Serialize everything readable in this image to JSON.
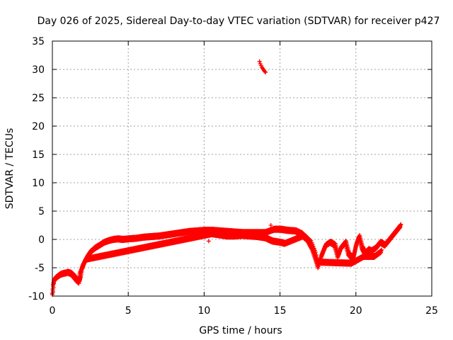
{
  "chart_data": {
    "type": "scatter",
    "title": "Day 026 of 2025, Sidereal Day-to-day VTEC variation (SDTVAR) for receiver p427",
    "xlabel": "GPS time / hours",
    "ylabel": "SDTVAR / TECUs",
    "xlim": [
      0,
      25
    ],
    "ylim": [
      -10,
      35
    ],
    "xticks": [
      0,
      5,
      10,
      15,
      20,
      25
    ],
    "yticks": [
      -10,
      -5,
      0,
      5,
      10,
      15,
      20,
      25,
      30,
      35
    ],
    "grid": true,
    "marker": "+",
    "color": "#ff0000",
    "series": [
      {
        "name": "SDTVAR",
        "trace": [
          [
            0.0,
            -9.5
          ],
          [
            0.05,
            -8.0
          ],
          [
            0.1,
            -7.2
          ],
          [
            0.2,
            -6.8
          ],
          [
            0.35,
            -6.5
          ],
          [
            0.5,
            -6.2
          ],
          [
            0.7,
            -6.0
          ],
          [
            0.9,
            -5.9
          ],
          [
            1.0,
            -5.8
          ],
          [
            1.2,
            -6.0
          ],
          [
            1.4,
            -6.5
          ],
          [
            1.6,
            -7.2
          ],
          [
            1.75,
            -7.5
          ],
          [
            1.85,
            -6.5
          ],
          [
            1.95,
            -5.0
          ],
          [
            2.1,
            -4.0
          ],
          [
            2.3,
            -3.0
          ],
          [
            2.5,
            -2.2
          ],
          [
            2.8,
            -1.5
          ],
          [
            3.1,
            -1.0
          ],
          [
            3.4,
            -0.5
          ],
          [
            3.7,
            -0.2
          ],
          [
            4.0,
            0.0
          ],
          [
            4.3,
            0.1
          ],
          [
            4.6,
            0.0
          ],
          [
            5.0,
            0.1
          ],
          [
            5.5,
            0.2
          ],
          [
            6.0,
            0.4
          ],
          [
            6.5,
            0.5
          ],
          [
            7.0,
            0.6
          ],
          [
            7.5,
            0.8
          ],
          [
            8.0,
            1.0
          ],
          [
            8.5,
            1.2
          ],
          [
            9.0,
            1.4
          ],
          [
            9.5,
            1.5
          ],
          [
            10.0,
            1.6
          ],
          [
            10.5,
            1.6
          ],
          [
            11.0,
            1.5
          ],
          [
            11.5,
            1.4
          ],
          [
            12.0,
            1.3
          ],
          [
            12.5,
            1.2
          ],
          [
            13.0,
            1.2
          ],
          [
            13.5,
            1.2
          ],
          [
            14.0,
            1.2
          ],
          [
            14.3,
            1.5
          ],
          [
            14.6,
            1.8
          ],
          [
            15.0,
            1.8
          ],
          [
            15.5,
            1.6
          ],
          [
            16.0,
            1.5
          ],
          [
            16.4,
            1.0
          ],
          [
            16.8,
            0.0
          ],
          [
            17.1,
            -1.5
          ],
          [
            17.35,
            -3.5
          ],
          [
            17.5,
            -4.8
          ],
          [
            17.7,
            -3.0
          ],
          [
            18.0,
            -1.0
          ],
          [
            18.3,
            -0.5
          ],
          [
            18.6,
            -1.0
          ],
          [
            18.8,
            -3.0
          ],
          [
            19.0,
            -1.5
          ],
          [
            19.3,
            -0.5
          ],
          [
            19.5,
            -2.5
          ],
          [
            19.8,
            -3.5
          ],
          [
            20.0,
            -1.0
          ],
          [
            20.2,
            0.5
          ],
          [
            20.4,
            -1.5
          ],
          [
            20.6,
            -2.5
          ],
          [
            20.8,
            -1.8
          ],
          [
            21.0,
            -2.0
          ],
          [
            21.3,
            -1.5
          ],
          [
            21.6,
            -0.5
          ],
          [
            21.9,
            -1.0
          ],
          [
            22.2,
            0.0
          ],
          [
            22.5,
            1.0
          ],
          [
            22.8,
            2.0
          ],
          [
            22.95,
            2.5
          ]
        ],
        "low_trace": [
          [
            1.7,
            -7.5
          ],
          [
            1.8,
            -6.0
          ],
          [
            2.0,
            -4.5
          ],
          [
            2.2,
            -3.5
          ],
          [
            10.5,
            1.0
          ],
          [
            11.0,
            0.8
          ],
          [
            11.5,
            0.6
          ],
          [
            12.0,
            0.6
          ],
          [
            12.5,
            0.7
          ],
          [
            13.0,
            0.6
          ],
          [
            13.5,
            0.5
          ],
          [
            14.0,
            0.3
          ],
          [
            14.5,
            -0.3
          ],
          [
            15.0,
            -0.5
          ],
          [
            15.3,
            -0.7
          ],
          [
            16.5,
            0.6
          ],
          [
            17.0,
            -0.5
          ],
          [
            17.3,
            -2.5
          ],
          [
            17.45,
            -4.0
          ],
          [
            19.7,
            -4.2
          ],
          [
            20.5,
            -3.0
          ],
          [
            21.2,
            -3.0
          ],
          [
            21.7,
            -2.0
          ]
        ],
        "isolated": [
          [
            0.0,
            -9.5
          ],
          [
            10.3,
            -0.3
          ],
          [
            14.4,
            2.5
          ],
          [
            13.65,
            31.4
          ],
          [
            13.7,
            31.0
          ],
          [
            13.75,
            30.7
          ],
          [
            13.8,
            30.4
          ],
          [
            13.85,
            30.2
          ],
          [
            13.9,
            30.0
          ],
          [
            13.95,
            29.8
          ],
          [
            14.0,
            29.6
          ],
          [
            14.05,
            29.5
          ]
        ]
      }
    ]
  }
}
